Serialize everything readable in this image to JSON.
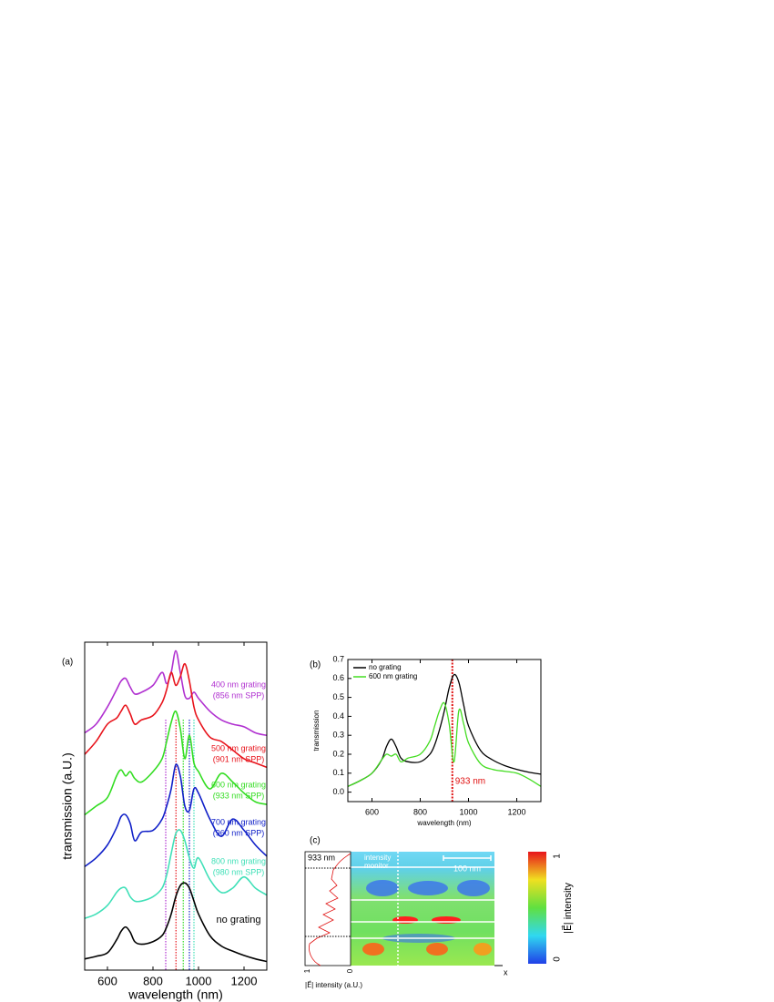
{
  "chart_data": [
    {
      "type": "line",
      "panel_label": "(a)",
      "x_label": "wavelength (nm)",
      "y_label": "transmission (a.U.)",
      "xlim": [
        500,
        1300
      ],
      "xticks": [
        600,
        800,
        1000,
        1200
      ],
      "ylim": [
        0,
        380
      ],
      "x": [
        500,
        550,
        600,
        640,
        660,
        680,
        700,
        720,
        750,
        800,
        840,
        860,
        880,
        900,
        920,
        940,
        960,
        980,
        1000,
        1050,
        1100,
        1150,
        1200,
        1250,
        1300
      ],
      "series": [
        {
          "name": "400 nm grating",
          "color": "#b030d0",
          "spp": {
            "value": 856,
            "label": "(856 nm SPP)"
          },
          "values": [
            275,
            285,
            305,
            325,
            335,
            338,
            328,
            320,
            322,
            330,
            345,
            332,
            345,
            370,
            345,
            318,
            315,
            322,
            315,
            300,
            290,
            285,
            282,
            275,
            272
          ]
        },
        {
          "name": "500 nm grating",
          "color": "#e8141c",
          "spp": {
            "value": 901,
            "label": "(901 nm SPP)"
          },
          "values": [
            250,
            265,
            285,
            292,
            300,
            307,
            297,
            285,
            290,
            295,
            310,
            325,
            345,
            330,
            340,
            355,
            335,
            305,
            290,
            270,
            265,
            255,
            245,
            240,
            235
          ]
        },
        {
          "name": "600 nm grating",
          "color": "#33dd22",
          "spp": {
            "value": 933,
            "label": "(933 nm SPP)"
          },
          "values": [
            180,
            190,
            200,
            225,
            232,
            225,
            230,
            222,
            218,
            230,
            245,
            265,
            287,
            300,
            280,
            245,
            272,
            240,
            230,
            210,
            228,
            218,
            205,
            195,
            192
          ]
        },
        {
          "name": "700 nm grating",
          "color": "#1020c8",
          "spp": {
            "value": 960,
            "label": "(960 nm SPP)"
          },
          "values": [
            120,
            130,
            145,
            165,
            178,
            180,
            170,
            150,
            160,
            162,
            175,
            190,
            210,
            238,
            225,
            190,
            185,
            210,
            205,
            175,
            155,
            175,
            162,
            145,
            132
          ]
        },
        {
          "name": "800 nm grating",
          "color": "#40e0b8",
          "spp": {
            "value": 980,
            "label": "(980 nm SPP)"
          },
          "values": [
            60,
            65,
            75,
            90,
            95,
            95,
            85,
            80,
            80,
            85,
            95,
            110,
            135,
            158,
            162,
            150,
            130,
            118,
            130,
            105,
            90,
            95,
            108,
            95,
            87
          ]
        },
        {
          "name": "no grating",
          "color": "#000000",
          "values": [
            13,
            16,
            20,
            35,
            45,
            50,
            44,
            33,
            30,
            33,
            40,
            50,
            65,
            85,
            98,
            101,
            95,
            80,
            65,
            40,
            28,
            22,
            17,
            13,
            10
          ]
        }
      ]
    },
    {
      "type": "line",
      "panel_label": "(b)",
      "x_label": "wavelength (nm)",
      "y_label": "transmission",
      "xlim": [
        500,
        1300
      ],
      "xticks": [
        600,
        800,
        1000,
        1200
      ],
      "ylim": [
        -0.05,
        0.7
      ],
      "yticks": [
        {
          "value": 0,
          "label": "0.0"
        },
        0.1,
        0.2,
        0.3,
        0.4,
        0.5,
        0.6,
        0.7
      ],
      "x": [
        500,
        550,
        600,
        640,
        660,
        680,
        700,
        720,
        750,
        800,
        840,
        860,
        880,
        900,
        920,
        940,
        960,
        980,
        1000,
        1050,
        1100,
        1150,
        1200,
        1250,
        1300
      ],
      "series": [
        {
          "name": "no grating",
          "color": "#000000",
          "values": [
            0.03,
            0.06,
            0.1,
            0.17,
            0.24,
            0.28,
            0.24,
            0.18,
            0.16,
            0.16,
            0.2,
            0.25,
            0.33,
            0.43,
            0.55,
            0.62,
            0.58,
            0.46,
            0.35,
            0.22,
            0.17,
            0.14,
            0.12,
            0.105,
            0.095
          ]
        },
        {
          "name": "600 nm grating",
          "color": "#44dd22",
          "values": [
            0.03,
            0.06,
            0.1,
            0.17,
            0.2,
            0.19,
            0.2,
            0.16,
            0.18,
            0.2,
            0.27,
            0.35,
            0.43,
            0.47,
            0.36,
            0.16,
            0.43,
            0.36,
            0.26,
            0.15,
            0.12,
            0.11,
            0.1,
            0.07,
            0.03
          ]
        }
      ],
      "annotation": {
        "text": "933 nm",
        "x": 933,
        "color": "#e01010"
      }
    }
  ],
  "field_map": {
    "panel_label": "(c)",
    "wavelength_label": "933 nm",
    "monitor_label": [
      "intensity",
      "monitor"
    ],
    "scale_bar": "100 nm",
    "x_axis_label": "x",
    "profile_label": "|E⃗| intensity (a.U.)",
    "profile_ticks": [
      "1",
      "0"
    ],
    "colorbar_label": "|E⃗| intensity",
    "colorbar_ticks": [
      "1",
      "0"
    ]
  }
}
